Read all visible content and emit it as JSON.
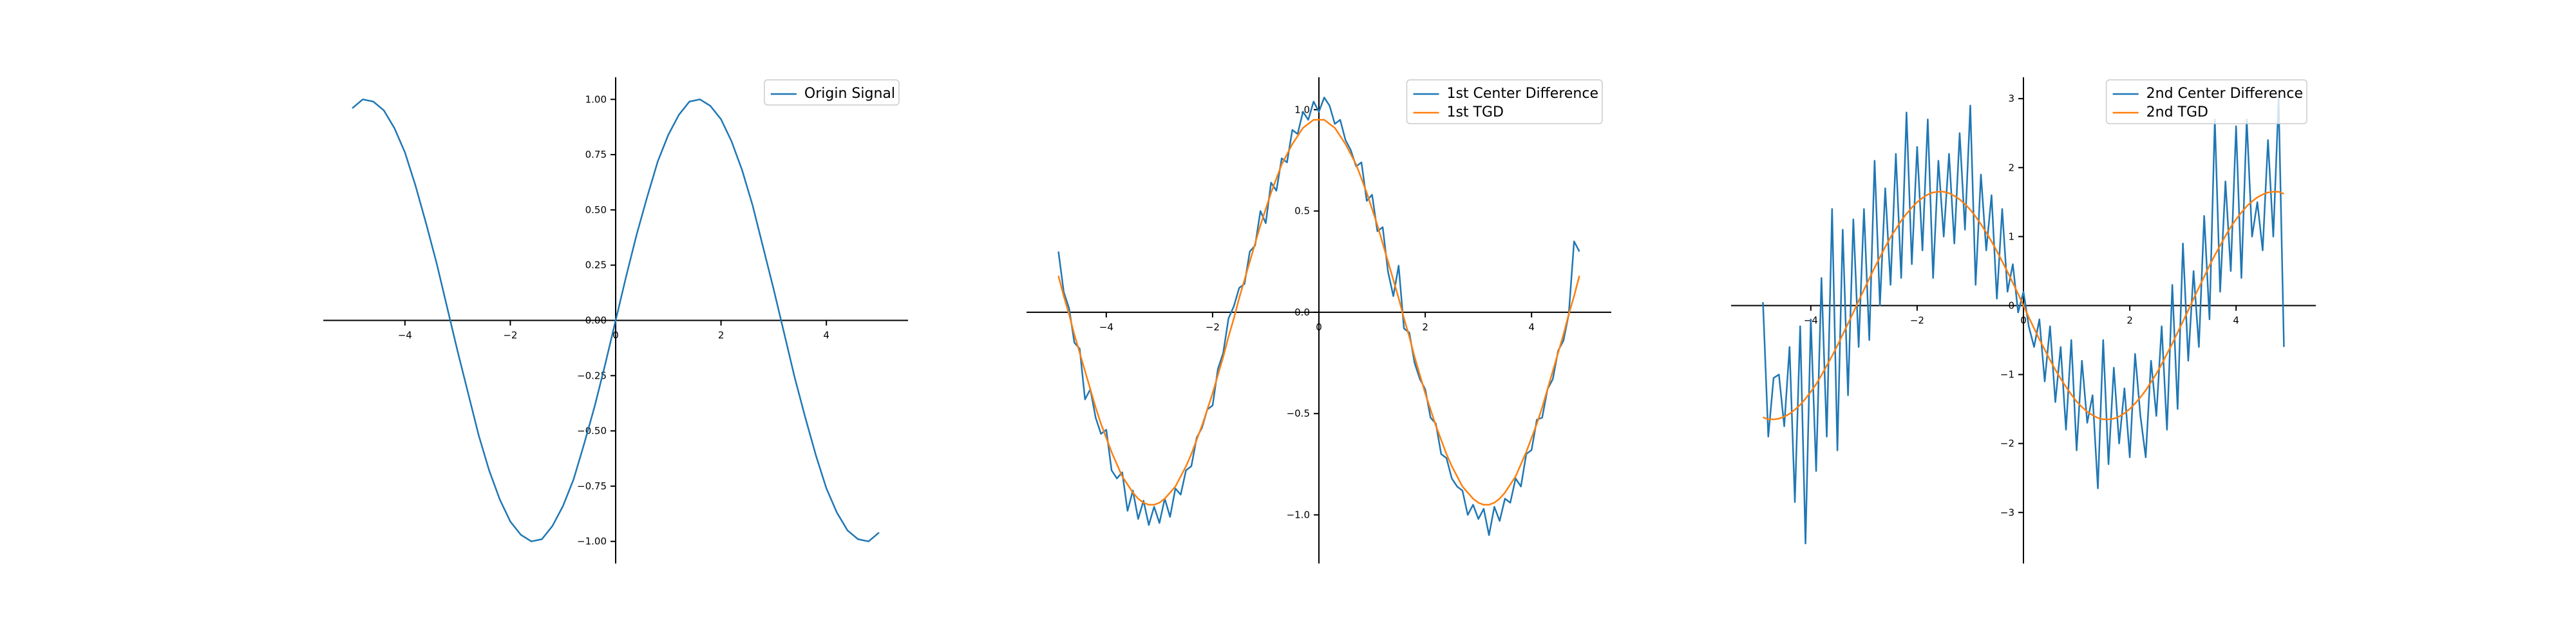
{
  "chart_data": [
    {
      "type": "line",
      "x": [
        -5,
        -4.8,
        -4.6,
        -4.4,
        -4.2,
        -4,
        -3.8,
        -3.6,
        -3.4,
        -3.2,
        -3,
        -2.8,
        -2.6,
        -2.4,
        -2.2,
        -2,
        -1.8,
        -1.6,
        -1.4,
        -1.2,
        -1,
        -0.8,
        -0.6,
        -0.4,
        -0.2,
        0,
        0.2,
        0.4,
        0.6,
        0.8,
        1,
        1.2,
        1.4,
        1.6,
        1.8,
        2,
        2.2,
        2.4,
        2.6,
        2.8,
        3,
        3.2,
        3.4,
        3.6,
        3.8,
        4,
        4.2,
        4.4,
        4.6,
        4.8,
        5
      ],
      "series": [
        {
          "name": "Origin Signal",
          "color": "#1f77b4",
          "values": [
            0.96,
            1,
            0.99,
            0.95,
            0.87,
            0.76,
            0.61,
            0.44,
            0.26,
            0.06,
            -0.14,
            -0.33,
            -0.52,
            -0.68,
            -0.81,
            -0.91,
            -0.97,
            -1,
            -0.99,
            -0.93,
            -0.84,
            -0.72,
            -0.56,
            -0.39,
            -0.2,
            0,
            0.2,
            0.39,
            0.56,
            0.72,
            0.84,
            0.93,
            0.99,
            1,
            0.97,
            0.91,
            0.81,
            0.68,
            0.52,
            0.33,
            0.14,
            -0.06,
            -0.26,
            -0.44,
            -0.61,
            -0.76,
            -0.87,
            -0.95,
            -0.99,
            -1,
            -0.96
          ]
        }
      ],
      "xlim": [
        -5.55,
        5.55
      ],
      "xticks": [
        {
          "value": -4,
          "label": "−4"
        },
        {
          "value": -2,
          "label": "−2"
        },
        0,
        2,
        4
      ],
      "ylim": [
        -1.1,
        1.1
      ],
      "yticks": [
        {
          "value": -1,
          "label": "−1.00"
        },
        {
          "value": -0.75,
          "label": "−0.75"
        },
        {
          "value": -0.5,
          "label": "−0.50"
        },
        {
          "value": -0.25,
          "label": "−0.25"
        },
        {
          "value": 0,
          "label": "0.00"
        },
        {
          "value": 0.25,
          "label": "0.25"
        },
        {
          "value": 0.5,
          "label": "0.50"
        },
        {
          "value": 0.75,
          "label": "0.75"
        },
        {
          "value": 1,
          "label": "1.00"
        }
      ],
      "legend": "upper right"
    },
    {
      "type": "line",
      "x": [
        -4.9,
        -4.8,
        -4.7,
        -4.6,
        -4.5,
        -4.4,
        -4.3,
        -4.2,
        -4.1,
        -4,
        -3.9,
        -3.8,
        -3.7,
        -3.6,
        -3.5,
        -3.4,
        -3.3,
        -3.2,
        -3.1,
        -3,
        -2.9,
        -2.8,
        -2.7,
        -2.6,
        -2.5,
        -2.4,
        -2.3,
        -2.2,
        -2.1,
        -2,
        -1.9,
        -1.8,
        -1.7,
        -1.6,
        -1.5,
        -1.4,
        -1.3,
        -1.2,
        -1.1,
        -1,
        -0.9,
        -0.8,
        -0.7,
        -0.6,
        -0.5,
        -0.4,
        -0.3,
        -0.2,
        -0.1,
        0,
        0.1,
        0.2,
        0.3,
        0.4,
        0.5,
        0.6,
        0.7,
        0.8,
        0.9,
        1,
        1.1,
        1.2,
        1.3,
        1.4,
        1.5,
        1.6,
        1.7,
        1.8,
        1.9,
        2,
        2.1,
        2.2,
        2.3,
        2.4,
        2.5,
        2.6,
        2.7,
        2.8,
        2.9,
        3,
        3.1,
        3.2,
        3.3,
        3.4,
        3.5,
        3.6,
        3.7,
        3.8,
        3.9,
        4,
        4.1,
        4.2,
        4.3,
        4.4,
        4.5,
        4.6,
        4.7,
        4.8,
        4.9
      ],
      "series": [
        {
          "name": "1st Center Difference",
          "color": "#1f77b4",
          "values": [
            0.3,
            0.1,
            0.02,
            -0.15,
            -0.18,
            -0.43,
            -0.38,
            -0.52,
            -0.6,
            -0.58,
            -0.78,
            -0.82,
            -0.79,
            -0.98,
            -0.88,
            -1.02,
            -0.93,
            -1.05,
            -0.96,
            -1.04,
            -0.92,
            -1.01,
            -0.87,
            -0.9,
            -0.78,
            -0.76,
            -0.62,
            -0.57,
            -0.48,
            -0.46,
            -0.28,
            -0.2,
            -0.03,
            0.03,
            0.12,
            0.14,
            0.3,
            0.33,
            0.5,
            0.44,
            0.64,
            0.6,
            0.76,
            0.74,
            0.9,
            0.88,
            0.99,
            0.95,
            1.04,
            0.99,
            1.06,
            1.02,
            0.93,
            0.95,
            0.85,
            0.8,
            0.72,
            0.74,
            0.55,
            0.58,
            0.4,
            0.42,
            0.2,
            0.08,
            0.23,
            -0.08,
            -0.1,
            -0.25,
            -0.33,
            -0.38,
            -0.52,
            -0.55,
            -0.7,
            -0.72,
            -0.82,
            -0.86,
            -0.88,
            -1,
            -0.95,
            -1.02,
            -0.97,
            -1.1,
            -0.96,
            -1.03,
            -0.92,
            -0.94,
            -0.82,
            -0.86,
            -0.7,
            -0.68,
            -0.53,
            -0.52,
            -0.38,
            -0.33,
            -0.19,
            -0.14,
            -0.01,
            0.35,
            0.3
          ]
        },
        {
          "name": "1st TGD",
          "color": "#ff7f0e",
          "values": [
            0.18,
            0.08,
            -0.01,
            -0.11,
            -0.2,
            -0.29,
            -0.38,
            -0.47,
            -0.55,
            -0.62,
            -0.69,
            -0.75,
            -0.81,
            -0.85,
            -0.89,
            -0.92,
            -0.94,
            -0.95,
            -0.95,
            -0.94,
            -0.92,
            -0.89,
            -0.86,
            -0.81,
            -0.76,
            -0.7,
            -0.63,
            -0.56,
            -0.48,
            -0.4,
            -0.31,
            -0.22,
            -0.12,
            -0.03,
            0.07,
            0.16,
            0.25,
            0.34,
            0.43,
            0.51,
            0.59,
            0.66,
            0.73,
            0.78,
            0.83,
            0.87,
            0.91,
            0.93,
            0.95,
            0.95,
            0.95,
            0.93,
            0.91,
            0.87,
            0.83,
            0.78,
            0.73,
            0.66,
            0.59,
            0.51,
            0.43,
            0.34,
            0.25,
            0.16,
            0.07,
            -0.03,
            -0.12,
            -0.22,
            -0.31,
            -0.4,
            -0.48,
            -0.56,
            -0.63,
            -0.7,
            -0.76,
            -0.81,
            -0.86,
            -0.89,
            -0.92,
            -0.94,
            -0.95,
            -0.95,
            -0.94,
            -0.92,
            -0.89,
            -0.85,
            -0.81,
            -0.75,
            -0.69,
            -0.62,
            -0.55,
            -0.47,
            -0.38,
            -0.29,
            -0.2,
            -0.11,
            -0.01,
            0.08,
            0.18
          ]
        }
      ],
      "xlim": [
        -5.5,
        5.5
      ],
      "xticks": [
        {
          "value": -4,
          "label": "−4"
        },
        {
          "value": -2,
          "label": "−2"
        },
        0,
        2,
        4
      ],
      "ylim": [
        -1.24,
        1.16
      ],
      "yticks": [
        {
          "value": -1,
          "label": "−1.0"
        },
        {
          "value": -0.5,
          "label": "−0.5"
        },
        {
          "value": 0,
          "label": "0.0"
        },
        0.5,
        {
          "value": 1,
          "label": "1.0"
        }
      ],
      "legend": "upper right"
    },
    {
      "type": "line",
      "x": [
        -4.9,
        -4.8,
        -4.7,
        -4.6,
        -4.5,
        -4.4,
        -4.3,
        -4.2,
        -4.1,
        -4,
        -3.9,
        -3.8,
        -3.7,
        -3.6,
        -3.5,
        -3.4,
        -3.3,
        -3.2,
        -3.1,
        -3,
        -2.9,
        -2.8,
        -2.7,
        -2.6,
        -2.5,
        -2.4,
        -2.3,
        -2.2,
        -2.1,
        -2,
        -1.9,
        -1.8,
        -1.7,
        -1.6,
        -1.5,
        -1.4,
        -1.3,
        -1.2,
        -1.1,
        -1,
        -0.9,
        -0.8,
        -0.7,
        -0.6,
        -0.5,
        -0.4,
        -0.3,
        -0.2,
        -0.1,
        0,
        0.1,
        0.2,
        0.3,
        0.4,
        0.5,
        0.6,
        0.7,
        0.8,
        0.9,
        1,
        1.1,
        1.2,
        1.3,
        1.4,
        1.5,
        1.6,
        1.7,
        1.8,
        1.9,
        2,
        2.1,
        2.2,
        2.3,
        2.4,
        2.5,
        2.6,
        2.7,
        2.8,
        2.9,
        3,
        3.1,
        3.2,
        3.3,
        3.4,
        3.5,
        3.6,
        3.7,
        3.8,
        3.9,
        4,
        4.1,
        4.2,
        4.3,
        4.4,
        4.5,
        4.6,
        4.7,
        4.8,
        4.9
      ],
      "series": [
        {
          "name": "2nd Center Difference",
          "color": "#1f77b4",
          "values": [
            0.05,
            -1.9,
            -1.05,
            -1,
            -1.75,
            -0.6,
            -2.85,
            -0.3,
            -3.45,
            -0.2,
            -2.4,
            0.4,
            -1.9,
            1.4,
            -2.1,
            1.1,
            -1.3,
            1.25,
            -0.6,
            1.4,
            -0.5,
            2.1,
            0,
            1.7,
            0.3,
            2.2,
            0.4,
            2.8,
            0.6,
            2.3,
            0.8,
            2.7,
            0.4,
            2.1,
            1,
            2.2,
            0.9,
            2.5,
            1.1,
            2.9,
            0.3,
            1.9,
            0.8,
            1.6,
            0.1,
            1.4,
            0.2,
            0.6,
            -0.1,
            0.2,
            -0.3,
            -0.6,
            -0.2,
            -1.1,
            -0.3,
            -1.4,
            -0.6,
            -1.8,
            -0.5,
            -2.1,
            -0.8,
            -1.7,
            -1.3,
            -2.65,
            -0.5,
            -2.3,
            -0.9,
            -2,
            -1.2,
            -2.2,
            -0.7,
            -1.6,
            -2.2,
            -0.8,
            -1.6,
            -0.3,
            -1.8,
            0.3,
            -1.5,
            0.9,
            -0.8,
            0.5,
            -0.6,
            1.3,
            -0.2,
            2.7,
            0.2,
            1.8,
            0.5,
            2.6,
            0.4,
            2.7,
            1,
            1.5,
            0.8,
            2.4,
            1,
            3,
            -0.6
          ]
        },
        {
          "name": "2nd TGD",
          "color": "#ff7f0e",
          "values": [
            -1.62,
            -1.65,
            -1.65,
            -1.64,
            -1.61,
            -1.57,
            -1.51,
            -1.44,
            -1.35,
            -1.25,
            -1.14,
            -1.01,
            -0.87,
            -0.73,
            -0.58,
            -0.42,
            -0.26,
            -0.1,
            0.07,
            0.23,
            0.39,
            0.55,
            0.7,
            0.85,
            0.99,
            1.11,
            1.23,
            1.33,
            1.42,
            1.5,
            1.56,
            1.61,
            1.64,
            1.65,
            1.65,
            1.63,
            1.59,
            1.54,
            1.47,
            1.39,
            1.29,
            1.18,
            1.06,
            0.93,
            0.79,
            0.64,
            0.49,
            0.33,
            0.17,
            0,
            -0.17,
            -0.33,
            -0.49,
            -0.64,
            -0.79,
            -0.93,
            -1.06,
            -1.18,
            -1.29,
            -1.39,
            -1.47,
            -1.54,
            -1.59,
            -1.63,
            -1.65,
            -1.65,
            -1.64,
            -1.61,
            -1.56,
            -1.5,
            -1.42,
            -1.33,
            -1.23,
            -1.11,
            -0.99,
            -0.85,
            -0.7,
            -0.55,
            -0.39,
            -0.23,
            -0.07,
            0.1,
            0.26,
            0.42,
            0.58,
            0.73,
            0.87,
            1.01,
            1.14,
            1.25,
            1.35,
            1.44,
            1.51,
            1.57,
            1.61,
            1.64,
            1.65,
            1.65,
            1.62
          ]
        }
      ],
      "xlim": [
        -5.5,
        5.5
      ],
      "xticks": [
        {
          "value": -4,
          "label": "−4"
        },
        {
          "value": -2,
          "label": "−2"
        },
        0,
        2,
        4
      ],
      "ylim": [
        -3.74,
        3.31
      ],
      "yticks": [
        {
          "value": -3,
          "label": "−3"
        },
        {
          "value": -2,
          "label": "−2"
        },
        {
          "value": -1,
          "label": "−1"
        },
        0,
        1,
        2,
        3
      ],
      "legend": "upper right"
    }
  ]
}
